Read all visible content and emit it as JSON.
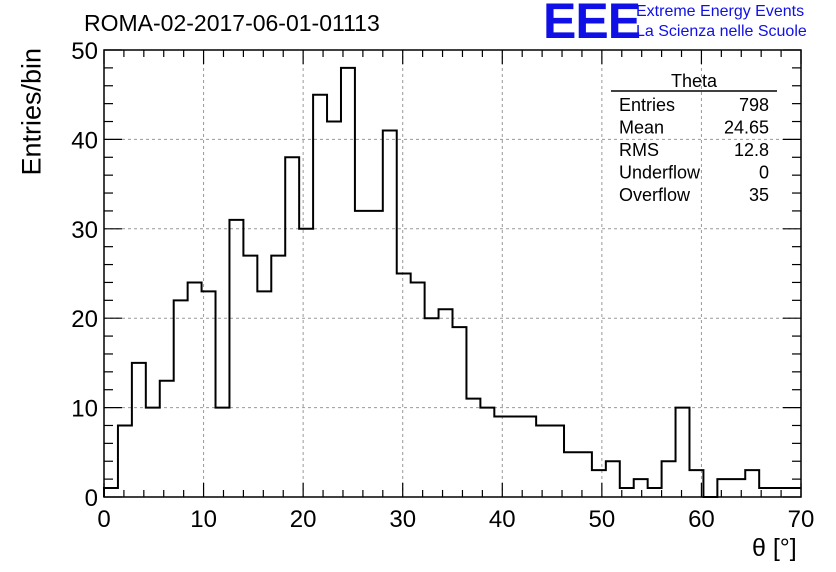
{
  "header": {
    "title": "ROMA-02-2017-06-01-01113",
    "logo_text": "EEE",
    "logo_line1": "Extreme Energy Events",
    "logo_line2": "La Scienza nelle Scuole"
  },
  "stats": {
    "name": "Theta",
    "rows": [
      {
        "label": "Entries",
        "value": "798"
      },
      {
        "label": "Mean",
        "value": "24.65"
      },
      {
        "label": "RMS",
        "value": "12.8"
      },
      {
        "label": "Underflow",
        "value": "0"
      },
      {
        "label": "Overflow",
        "value": "35"
      }
    ]
  },
  "chart_data": {
    "type": "bar",
    "histogram": true,
    "title": "ROMA-02-2017-06-01-01113",
    "xlabel": "θ [°]",
    "ylabel": "Entries/bin",
    "xlim": [
      0,
      70
    ],
    "ylim": [
      0,
      50
    ],
    "xticks": [
      0,
      10,
      20,
      30,
      40,
      50,
      60,
      70
    ],
    "yticks": [
      0,
      10,
      20,
      30,
      40,
      50
    ],
    "grid": true,
    "bin_width": 1.4,
    "bin_edges_start": 0,
    "values": [
      1,
      8,
      15,
      10,
      13,
      22,
      24,
      23,
      10,
      31,
      27,
      23,
      27,
      38,
      30,
      45,
      42,
      48,
      32,
      32,
      41,
      25,
      24,
      20,
      21,
      19,
      11,
      10,
      9,
      9,
      9,
      8,
      8,
      5,
      5,
      3,
      4,
      1,
      2,
      1,
      4,
      10,
      3,
      0,
      2,
      2,
      3,
      1,
      1,
      1
    ],
    "colors": {
      "line": "#000000",
      "grid": "#999999",
      "logo": "#1010e6"
    }
  }
}
